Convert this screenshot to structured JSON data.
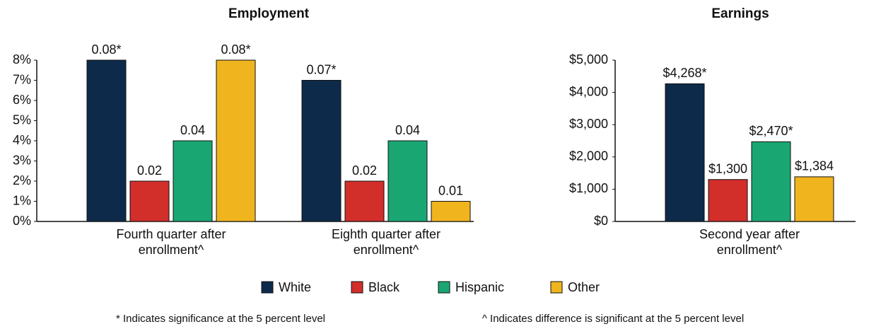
{
  "chart_data": [
    {
      "type": "bar",
      "title": "Employment",
      "categories": [
        "Fourth quarter after enrollment^",
        "Eighth quarter after enrollment^"
      ],
      "series": [
        {
          "name": "White",
          "color": "#0d2a4a",
          "values": [
            8,
            7
          ],
          "value_labels": [
            "0.08*",
            "0.07*"
          ]
        },
        {
          "name": "Black",
          "color": "#d22e2a",
          "values": [
            2,
            2
          ],
          "value_labels": [
            "0.02",
            "0.02"
          ]
        },
        {
          "name": "Hispanic",
          "color": "#1aa673",
          "values": [
            4,
            4
          ],
          "value_labels": [
            "0.04",
            "0.04"
          ]
        },
        {
          "name": "Other",
          "color": "#f0b41e",
          "values": [
            8,
            1
          ],
          "value_labels": [
            "0.08*",
            "0.01"
          ]
        }
      ],
      "ylim": [
        0,
        8
      ],
      "yticks": [
        {
          "value": 0,
          "label": "0%"
        },
        {
          "value": 1,
          "label": "1%"
        },
        {
          "value": 2,
          "label": "2%"
        },
        {
          "value": 3,
          "label": "3%"
        },
        {
          "value": 4,
          "label": "4%"
        },
        {
          "value": 5,
          "label": "5%"
        },
        {
          "value": 6,
          "label": "6%"
        },
        {
          "value": 7,
          "label": "7%"
        },
        {
          "value": 8,
          "label": "8%"
        }
      ]
    },
    {
      "type": "bar",
      "title": "Earnings",
      "categories": [
        "Second year after enrollment^"
      ],
      "series": [
        {
          "color": "#0d2a4a",
          "values": [
            4268
          ],
          "value_labels": [
            "$4,268*"
          ]
        },
        {
          "color": "#d22e2a",
          "values": [
            1300
          ],
          "value_labels": [
            "$1,300"
          ]
        },
        {
          "color": "#1aa673",
          "values": [
            2470
          ],
          "value_labels": [
            "$2,470*"
          ]
        },
        {
          "color": "#f0b41e",
          "values": [
            1384
          ],
          "value_labels": [
            "$1,384"
          ]
        }
      ],
      "ylim": [
        0,
        5000
      ],
      "yticks": [
        {
          "value": 0,
          "label": "$0"
        },
        {
          "value": 1000,
          "label": "$1,000"
        },
        {
          "value": 2000,
          "label": "$2,000"
        },
        {
          "value": 3000,
          "label": "$3,000"
        },
        {
          "value": 4000,
          "label": "$4,000"
        },
        {
          "value": 5000,
          "label": "$5,000"
        }
      ]
    }
  ],
  "notes": [
    "* Indicates significance at the 5 percent level",
    "^ Indicates difference is significant at the 5 percent level"
  ]
}
